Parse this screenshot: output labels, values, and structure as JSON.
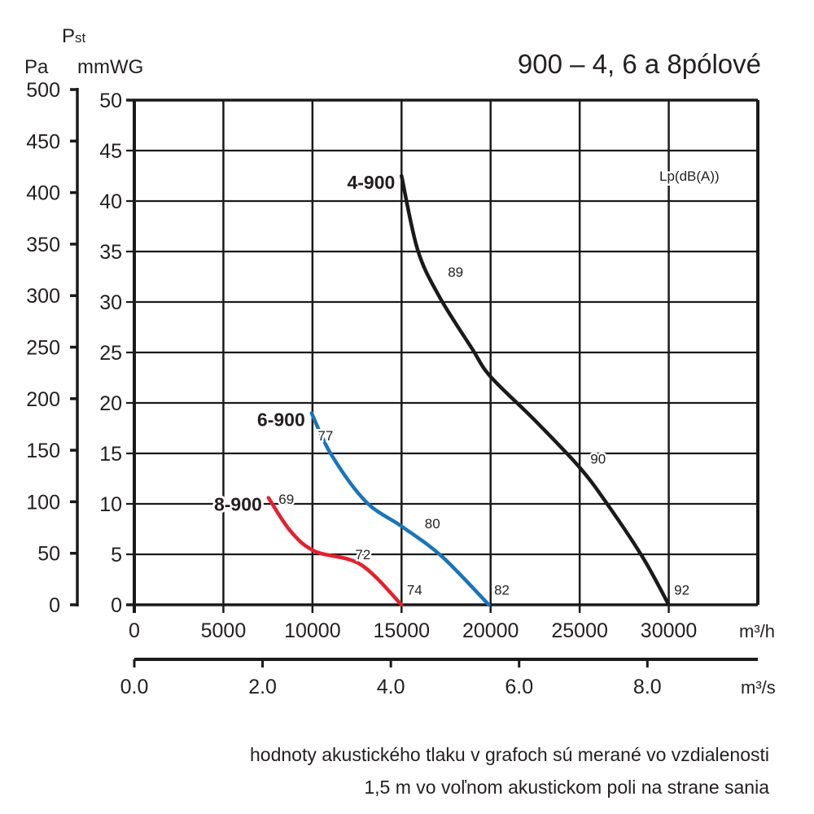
{
  "chart_data": {
    "type": "line",
    "title": "900 – 4, 6 a 8pólové",
    "ylabel": "Pst",
    "yunits": [
      "Pa",
      "mmWG"
    ],
    "xunits": [
      "m3/h",
      "m3/s"
    ],
    "xlim": [
      0,
      35000
    ],
    "ylim_mmWG": [
      0,
      50
    ],
    "ylim_Pa": [
      0,
      500
    ],
    "x_ticks": [
      "0",
      "5000",
      "10000",
      "15000",
      "20000",
      "25000",
      "30000"
    ],
    "x_tick_values": [
      0,
      5000,
      10000,
      15000,
      20000,
      25000,
      30000
    ],
    "x2_ticks": [
      "0.0",
      "2.0",
      "4.0",
      "6.0",
      "8.0"
    ],
    "x2_tick_values": [
      0,
      2,
      4,
      6,
      8
    ],
    "y_ticks_mmWG": [
      "0",
      "5",
      "10",
      "15",
      "20",
      "25",
      "30",
      "35",
      "40",
      "45",
      "50"
    ],
    "y_ticks_Pa": [
      "0",
      "50",
      "100",
      "150",
      "200",
      "250",
      "300",
      "350",
      "400",
      "450",
      "500"
    ],
    "grid": true,
    "annotation_header": "Lp(dB(A))",
    "series": [
      {
        "name": "4-900",
        "color": "#1a1a1a",
        "points": [
          [
            15000,
            42.5
          ],
          [
            15900,
            35.2
          ],
          [
            17100,
            30.6
          ],
          [
            18950,
            25.4
          ],
          [
            20000,
            22.6
          ],
          [
            22470,
            18.3
          ],
          [
            25000,
            13.6
          ],
          [
            26580,
            9.9
          ],
          [
            28540,
            4.7
          ],
          [
            30000,
            0
          ]
        ],
        "lp_labels": [
          {
            "x": 17600,
            "y": 32.5,
            "text": "89"
          },
          {
            "x": 25600,
            "y": 14.0,
            "text": "90"
          },
          {
            "x": 30300,
            "y": 1.0,
            "text": "92"
          }
        ]
      },
      {
        "name": "6-900",
        "color": "#1a74bb",
        "points": [
          [
            9950,
            19.0
          ],
          [
            11050,
            14.9
          ],
          [
            13010,
            10.2
          ],
          [
            15070,
            7.7
          ],
          [
            17260,
            4.8
          ],
          [
            19900,
            0
          ]
        ],
        "lp_labels": [
          {
            "x": 10300,
            "y": 16.3,
            "text": "77"
          },
          {
            "x": 16300,
            "y": 7.6,
            "text": "80"
          },
          {
            "x": 20200,
            "y": 1.0,
            "text": "82"
          }
        ]
      },
      {
        "name": "8-900",
        "color": "#e5202e",
        "points": [
          [
            7530,
            10.6
          ],
          [
            8770,
            7.3
          ],
          [
            10140,
            5.3
          ],
          [
            12700,
            4.0
          ],
          [
            15000,
            0
          ]
        ],
        "lp_labels": [
          {
            "x": 8100,
            "y": 10.0,
            "text": "69"
          },
          {
            "x": 12400,
            "y": 4.5,
            "text": "72"
          },
          {
            "x": 15300,
            "y": 1.0,
            "text": "74"
          }
        ]
      }
    ]
  },
  "labels": {
    "pst": "P",
    "pst_sub": "st",
    "pa": "Pa",
    "mmwg": "mmWG",
    "m3h": "m³/h",
    "m3s": "m³/s"
  },
  "footer": {
    "line1": "hodnoty akustického tlaku v grafoch sú merané vo vzdialenosti",
    "line2": "1,5 m vo voľnom akustickom poli na strane sania"
  }
}
